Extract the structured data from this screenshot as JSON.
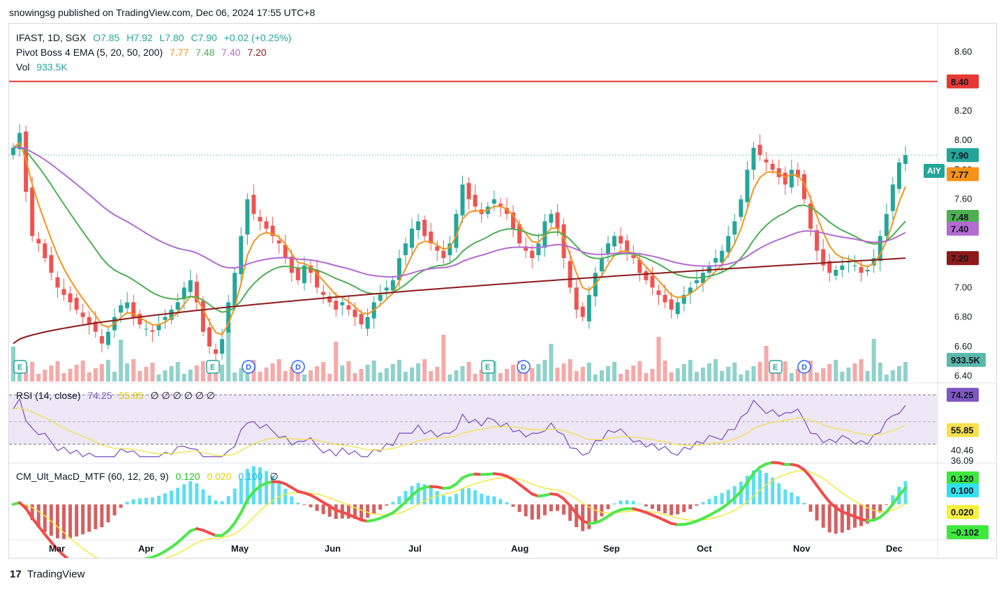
{
  "publisher": "snowingsg published on TradingView.com, Dec 06, 2024 17:55 UTC+8",
  "footer": {
    "logo": "17",
    "brand": "TradingView"
  },
  "legend": {
    "symbol": "IFAST, 1D, SGX",
    "open": "O7.85",
    "high": "H7.92",
    "low": "L7.80",
    "close": "C7.90",
    "change": "+0.02 (+0.25%)",
    "ema_name": "Pivot Boss 4 EMA (5, 20, 50, 200)",
    "ema_vals": [
      "7.77",
      "7.48",
      "7.40",
      "7.20"
    ],
    "vol_name": "Vol",
    "vol_val": "933.5K",
    "rsi_name": "RSI (14, close)",
    "rsi_vals": [
      "74.25",
      "55.85"
    ],
    "rsi_extra": "∅ ∅ ∅ ∅ ∅ ∅",
    "macd_name": "CM_Ult_MacD_MTF (60, 12, 26, 9)",
    "macd_vals": [
      "0.120",
      "0.020",
      "0.100"
    ],
    "macd_extra": "∅"
  },
  "colors": {
    "up": "#26a69a",
    "down": "#ef5350",
    "ema5": "#f7931a",
    "ema20": "#4caf50",
    "ema50": "#b36ad1",
    "ema200": "#8b1a1a",
    "resistance": "#e53935",
    "rsi": "#7e57c2",
    "rsi_ma": "#f5e04d",
    "rsi_band": "#ede7f6"
  },
  "price_axis": {
    "ticks": [
      "8.60",
      "8.40",
      "8.20",
      "8.00",
      "7.80",
      "7.60",
      "7.40",
      "7.20",
      "7.00",
      "6.80",
      "6.60",
      "6.40"
    ],
    "labels": [
      {
        "name": "resistance",
        "text": "8.40",
        "color": "#e53935"
      },
      {
        "name": "last",
        "text": "7.90",
        "color": "#23a69a",
        "tag": "AIY"
      },
      {
        "name": "ema5",
        "text": "7.77",
        "color": "#f7931a"
      },
      {
        "name": "ema20",
        "text": "7.48",
        "color": "#4caf50"
      },
      {
        "name": "ema50",
        "text": "7.40",
        "color": "#b36ad1"
      },
      {
        "name": "ema200",
        "text": "7.20",
        "color": "#8b1a1a"
      },
      {
        "name": "volume",
        "text": "933.5K",
        "color": "#5bb8ad"
      }
    ]
  },
  "rsi_axis": {
    "labels": [
      {
        "text": "74.25",
        "color": "#7e57c2",
        "bg": true
      },
      {
        "text": "55.85",
        "color": "#f5e04d",
        "bg": true,
        "dark": true
      },
      {
        "text": "40.46",
        "bg": false
      },
      {
        "text": "36.09",
        "bg": false
      }
    ]
  },
  "macd_axis": {
    "labels": [
      {
        "text": "0.120",
        "color": "#3ee83e",
        "dark": true
      },
      {
        "text": "0.100",
        "color": "#33e0f0",
        "dark": true
      },
      {
        "text": "0.020",
        "color": "#f7f03a",
        "dark": true
      },
      {
        "text": "−0.102",
        "color": "#3ee83e",
        "dark": true
      }
    ]
  },
  "time_axis": [
    "Mar",
    "Apr",
    "May",
    "Jun",
    "Jul",
    "Aug",
    "Sep",
    "Oct",
    "Nov",
    "Dec"
  ],
  "events": [
    "E",
    "E",
    "D",
    "D",
    "E",
    "D",
    "E",
    "D"
  ],
  "chart_data": {
    "type": "candlestick",
    "symbol": "IFAST",
    "timeframe": "1D",
    "price_range": [
      6.4,
      8.65
    ],
    "resistance": 8.4,
    "last_close": 7.9,
    "ema_last": {
      "ema5": 7.77,
      "ema20": 7.48,
      "ema50": 7.4,
      "ema200": 7.2
    },
    "close_series": [
      7.95,
      8.05,
      7.65,
      7.35,
      7.3,
      7.2,
      7.1,
      7.0,
      6.95,
      6.9,
      6.85,
      6.8,
      6.75,
      6.7,
      6.62,
      6.7,
      6.8,
      6.88,
      6.9,
      6.8,
      6.75,
      6.72,
      6.7,
      6.75,
      6.8,
      6.85,
      6.9,
      7.0,
      7.05,
      6.9,
      6.7,
      6.6,
      6.55,
      6.65,
      6.9,
      7.1,
      7.35,
      7.6,
      7.5,
      7.45,
      7.4,
      7.35,
      7.3,
      7.2,
      7.1,
      7.05,
      7.15,
      7.1,
      7.0,
      6.95,
      6.9,
      6.85,
      6.9,
      6.85,
      6.8,
      6.75,
      6.8,
      6.9,
      6.95,
      7.0,
      7.05,
      7.2,
      7.3,
      7.4,
      7.45,
      7.35,
      7.3,
      7.25,
      7.2,
      7.3,
      7.5,
      7.7,
      7.6,
      7.55,
      7.5,
      7.55,
      7.6,
      7.55,
      7.5,
      7.4,
      7.3,
      7.25,
      7.2,
      7.3,
      7.45,
      7.5,
      7.4,
      7.2,
      7.0,
      6.85,
      6.8,
      6.95,
      7.1,
      7.2,
      7.3,
      7.35,
      7.3,
      7.25,
      7.2,
      7.1,
      7.05,
      7.0,
      6.95,
      6.9,
      6.85,
      6.9,
      6.95,
      7.0,
      7.05,
      7.1,
      7.15,
      7.2,
      7.25,
      7.35,
      7.45,
      7.6,
      7.8,
      7.95,
      7.9,
      7.85,
      7.8,
      7.75,
      7.7,
      7.8,
      7.75,
      7.6,
      7.4,
      7.25,
      7.15,
      7.1,
      7.12,
      7.15,
      7.18,
      7.15,
      7.1,
      7.12,
      7.2,
      7.35,
      7.5,
      7.7,
      7.85,
      7.9
    ],
    "volume_last": "933.5K",
    "rsi": {
      "value": 74.25,
      "ma": 55.85,
      "band": [
        40.46,
        74.25
      ],
      "min_label": 36.09
    },
    "macd": {
      "macd": 0.12,
      "signal": 0.02,
      "hist": 0.1,
      "min_label": -0.102
    }
  }
}
